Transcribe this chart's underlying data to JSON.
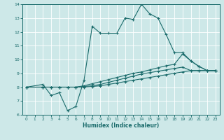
{
  "xlabel": "Humidex (Indice chaleur)",
  "xlim": [
    -0.5,
    23.5
  ],
  "ylim": [
    6,
    14
  ],
  "xticks": [
    0,
    1,
    2,
    3,
    4,
    5,
    6,
    7,
    8,
    9,
    10,
    11,
    12,
    13,
    14,
    15,
    16,
    17,
    18,
    19,
    20,
    21,
    22,
    23
  ],
  "yticks": [
    6,
    7,
    8,
    9,
    10,
    11,
    12,
    13,
    14
  ],
  "bg_color": "#cde8e8",
  "line_color": "#1a6b6b",
  "grid_color": "#ffffff",
  "lines": [
    {
      "x": [
        0,
        2,
        3,
        4,
        5,
        6,
        7,
        8,
        9,
        10,
        11,
        12,
        13,
        14,
        15,
        16,
        17,
        18,
        19,
        20,
        21,
        22,
        23
      ],
      "y": [
        8.0,
        8.2,
        7.4,
        7.6,
        6.3,
        6.6,
        8.5,
        12.4,
        11.9,
        11.9,
        11.9,
        13.0,
        12.9,
        14.0,
        13.3,
        13.0,
        11.8,
        10.5,
        10.5,
        9.9,
        9.5,
        9.2,
        9.2
      ]
    },
    {
      "x": [
        0,
        2,
        3,
        4,
        5,
        6,
        7,
        8,
        9,
        10,
        11,
        12,
        13,
        14,
        15,
        16,
        17,
        18,
        19,
        20,
        21,
        22,
        23
      ],
      "y": [
        8.0,
        8.0,
        8.0,
        8.0,
        8.0,
        8.0,
        8.1,
        8.25,
        8.4,
        8.55,
        8.7,
        8.85,
        9.0,
        9.1,
        9.25,
        9.4,
        9.55,
        9.65,
        10.4,
        9.9,
        9.5,
        9.2,
        9.2
      ]
    },
    {
      "x": [
        0,
        2,
        3,
        4,
        5,
        6,
        7,
        8,
        9,
        10,
        11,
        12,
        13,
        14,
        15,
        16,
        17,
        18,
        19,
        20,
        21,
        22,
        23
      ],
      "y": [
        8.0,
        8.0,
        8.0,
        8.0,
        8.0,
        8.0,
        8.05,
        8.1,
        8.2,
        8.35,
        8.5,
        8.65,
        8.8,
        8.95,
        9.05,
        9.15,
        9.25,
        9.35,
        9.45,
        9.2,
        9.2,
        9.2,
        9.2
      ]
    },
    {
      "x": [
        0,
        2,
        3,
        4,
        5,
        6,
        7,
        8,
        9,
        10,
        11,
        12,
        13,
        14,
        15,
        16,
        17,
        18,
        19,
        20,
        21,
        22,
        23
      ],
      "y": [
        8.0,
        8.0,
        8.0,
        8.0,
        8.0,
        8.0,
        8.0,
        8.05,
        8.1,
        8.2,
        8.3,
        8.4,
        8.5,
        8.6,
        8.7,
        8.8,
        8.9,
        9.0,
        9.1,
        9.2,
        9.2,
        9.2,
        9.2
      ]
    }
  ]
}
